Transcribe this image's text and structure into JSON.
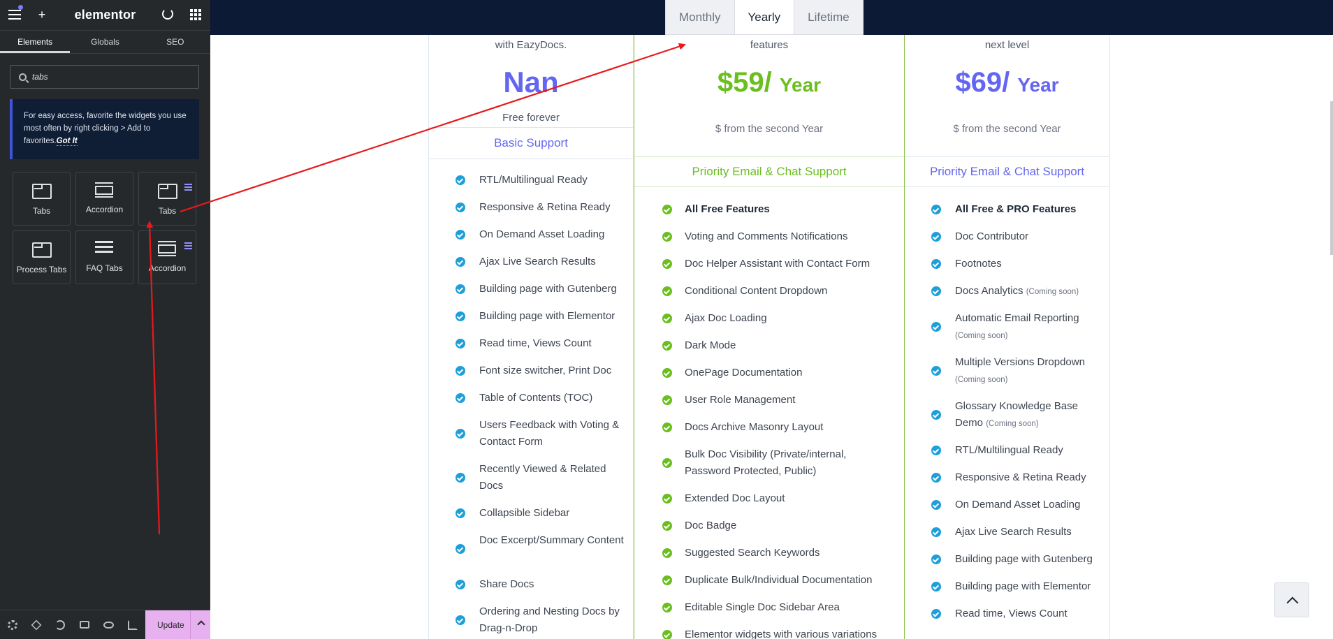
{
  "editor": {
    "logo": "elementor",
    "panel_tabs": [
      {
        "label": "Elements"
      },
      {
        "label": "Globals"
      },
      {
        "label": "SEO"
      }
    ],
    "search": {
      "value": "tabs"
    },
    "tip": {
      "text": "For easy access, favorite the widgets you use most often by right clicking > Add to favorites.",
      "link": "Got It"
    },
    "widgets": [
      {
        "label": "Tabs",
        "icon": "tabs-icon",
        "pro": false
      },
      {
        "label": "Accordion",
        "icon": "accordion-icon",
        "pro": false
      },
      {
        "label": "Tabs",
        "icon": "tabs-icon",
        "pro": true
      },
      {
        "label": "Process Tabs",
        "icon": "tabs-icon",
        "pro": false
      },
      {
        "label": "FAQ Tabs",
        "icon": "faq-icon",
        "pro": false
      },
      {
        "label": "Accordion",
        "icon": "accordion-icon",
        "pro": true
      }
    ],
    "footer": {
      "update_label": "Update"
    }
  },
  "pricing": {
    "billing_tabs": [
      {
        "label": "Monthly",
        "active": false
      },
      {
        "label": "Yearly",
        "active": true
      },
      {
        "label": "Lifetime",
        "active": false
      }
    ],
    "plans": [
      {
        "desc": "with EazyDocs.",
        "price": "Nan",
        "per": "",
        "sub": "Free forever",
        "support": "Basic Support",
        "accent": "#6366f1",
        "check": "#1e9fd9",
        "features": [
          {
            "text": "RTL/Multilingual Ready"
          },
          {
            "text": "Responsive & Retina Ready"
          },
          {
            "text": "On Demand Asset Loading"
          },
          {
            "text": "Ajax Live Search Results"
          },
          {
            "text": "Building page with Gutenberg"
          },
          {
            "text": "Building page with Elementor"
          },
          {
            "text": "Read time, Views Count"
          },
          {
            "text": "Font size switcher, Print Doc"
          },
          {
            "text": "Table of Contents (TOC)"
          },
          {
            "text": "Users Feedback with Voting & Contact Form"
          },
          {
            "text": "Recently Viewed & Related Docs"
          },
          {
            "text": "Collapsible Sidebar"
          },
          {
            "text": "Doc Excerpt/Summary Content"
          },
          {
            "text": "Share Docs"
          },
          {
            "text": "Ordering and Nesting Docs by Drag-n-Drop"
          }
        ]
      },
      {
        "desc": "features",
        "price": "$59/",
        "per": "Year",
        "sub": "$ from the second Year",
        "support": "Priority Email & Chat Support",
        "accent": "#6abf1e",
        "check": "#6abf1e",
        "features": [
          {
            "text": "All Free Features",
            "bold": true
          },
          {
            "text": "Voting and Comments Notifications"
          },
          {
            "text": "Doc Helper Assistant with Contact Form"
          },
          {
            "text": "Conditional Content Dropdown"
          },
          {
            "text": "Ajax Doc Loading"
          },
          {
            "text": "Dark Mode"
          },
          {
            "text": "OnePage Documentation"
          },
          {
            "text": "User Role Management"
          },
          {
            "text": "Docs Archive Masonry Layout"
          },
          {
            "text": "Bulk Doc Visibility (Private/internal, Password Protected, Public)"
          },
          {
            "text": "Extended Doc Layout"
          },
          {
            "text": "Doc Badge"
          },
          {
            "text": "Suggested Search Keywords"
          },
          {
            "text": "Duplicate Bulk/Individual Documentation"
          },
          {
            "text": "Editable Single Doc Sidebar Area"
          },
          {
            "text": "Elementor widgets with various variations"
          }
        ]
      },
      {
        "desc": "next level",
        "price": "$69/",
        "per": "Year",
        "sub": "$ from the second Year",
        "support": "Priority Email & Chat Support",
        "accent": "#6366f1",
        "check": "#1e9fd9",
        "features": [
          {
            "text": "All Free & PRO Features",
            "bold": true
          },
          {
            "text": "Doc Contributor"
          },
          {
            "text": "Footnotes"
          },
          {
            "text": "Docs Analytics",
            "note": "(Coming soon)"
          },
          {
            "text": "Automatic Email Reporting",
            "note": "(Coming soon)",
            "wrap": true
          },
          {
            "text": "Multiple Versions Dropdown",
            "note": "(Coming soon)",
            "wrap": true
          },
          {
            "text": "Glossary Knowledge Base Demo",
            "note": "(Coming soon)"
          },
          {
            "text": "RTL/Multilingual Ready"
          },
          {
            "text": "Responsive & Retina Ready"
          },
          {
            "text": "On Demand Asset Loading"
          },
          {
            "text": "Ajax Live Search Results"
          },
          {
            "text": "Building page with Gutenberg"
          },
          {
            "text": "Building page with Elementor"
          },
          {
            "text": "Read time, Views Count"
          }
        ]
      }
    ]
  },
  "annotation": {
    "color": "#e8191b"
  }
}
